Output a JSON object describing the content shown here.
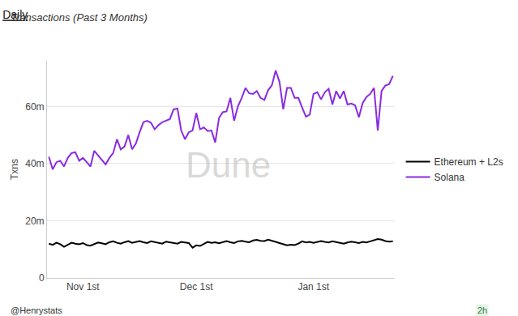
{
  "chart_data": {
    "type": "line",
    "title": "Daily",
    "subtitle": "Transactions (Past 3 Months)",
    "y_label": "Txns",
    "categories": [
      null,
      null,
      null,
      null,
      null,
      null,
      null,
      null,
      null,
      "Nov 1st",
      null,
      null,
      null,
      null,
      null,
      null,
      null,
      null,
      null,
      null,
      null,
      null,
      null,
      null,
      null,
      null,
      null,
      null,
      null,
      null,
      null,
      null,
      null,
      null,
      null,
      null,
      null,
      null,
      null,
      "Dec 1st",
      null,
      null,
      null,
      null,
      null,
      null,
      null,
      null,
      null,
      null,
      null,
      null,
      null,
      null,
      null,
      null,
      null,
      null,
      null,
      null,
      null,
      null,
      null,
      null,
      null,
      null,
      null,
      null,
      null,
      null,
      "Jan 1st",
      null,
      null,
      null,
      null,
      null,
      null,
      null,
      null,
      null,
      null,
      null,
      null,
      null,
      null,
      null,
      null,
      null,
      null,
      null,
      null,
      null
    ],
    "series": [
      {
        "name": "Ethereum + L2s",
        "color": "#000000",
        "values": [
          12000000,
          11600000,
          12300000,
          11800000,
          10900000,
          11700000,
          12300000,
          12000000,
          11800000,
          12200000,
          11500000,
          11300000,
          11900000,
          12400000,
          12100000,
          11800000,
          12500000,
          12800000,
          12300000,
          12000000,
          12500000,
          12900000,
          12300000,
          12600000,
          12900000,
          12500000,
          12200000,
          12800000,
          12600000,
          12400000,
          12000000,
          12700000,
          12500000,
          12300000,
          12000000,
          12600000,
          12400000,
          12200000,
          10600000,
          11400000,
          11200000,
          12000000,
          12600000,
          12300000,
          12500000,
          12100000,
          12600000,
          12900000,
          12500000,
          12200000,
          12800000,
          13000000,
          12700000,
          12500000,
          13100000,
          13300000,
          13000000,
          12900000,
          13400000,
          13100000,
          12600000,
          12200000,
          11700000,
          11400000,
          11600000,
          11500000,
          12000000,
          12800000,
          12400000,
          12600000,
          12300000,
          12700000,
          12900000,
          12600000,
          12400000,
          12800000,
          12500000,
          12200000,
          12000000,
          12400000,
          12700000,
          12500000,
          12200000,
          12600000,
          12400000,
          12800000,
          13200000,
          13600000,
          13400000,
          12900000,
          12700000,
          12800000
        ]
      },
      {
        "name": "Solana",
        "color": "#8a2be2",
        "values": [
          42400000,
          38000000,
          40500000,
          41000000,
          39000000,
          42000000,
          43700000,
          44000000,
          41000000,
          42000000,
          40500000,
          39000000,
          44500000,
          43000000,
          41500000,
          39700000,
          42000000,
          43700000,
          48500000,
          45000000,
          46000000,
          50000000,
          45000000,
          47000000,
          51000000,
          54500000,
          55000000,
          54300000,
          52000000,
          53500000,
          54500000,
          55000000,
          55600000,
          59000000,
          59300000,
          51600000,
          48500000,
          51000000,
          51600000,
          57700000,
          52000000,
          52700000,
          51400000,
          51600000,
          47400000,
          56000000,
          58000000,
          58300000,
          63000000,
          55000000,
          60000000,
          63000000,
          66500000,
          64600000,
          64400000,
          65400000,
          63000000,
          62300000,
          65700000,
          67500000,
          72600000,
          68600000,
          59000000,
          66500000,
          66500000,
          63000000,
          63000000,
          59600000,
          56400000,
          57200000,
          64400000,
          65000000,
          62500000,
          65000000,
          66200000,
          60700000,
          65400000,
          62800000,
          65400000,
          60700000,
          61000000,
          60400000,
          56200000,
          61200000,
          63300000,
          64400000,
          66500000,
          51600000,
          65400000,
          67300000,
          67800000,
          70700000
        ]
      }
    ],
    "ylim": [
      0,
      76000000
    ],
    "yticks": [
      0,
      {
        "value": 20000000,
        "label": "20m"
      },
      {
        "value": 40000000,
        "label": "40m"
      },
      {
        "value": 60000000,
        "label": "60m"
      }
    ],
    "grid": true,
    "legend": "right",
    "annotations": [
      "Dune",
      "@Henrystats",
      "2h"
    ]
  }
}
